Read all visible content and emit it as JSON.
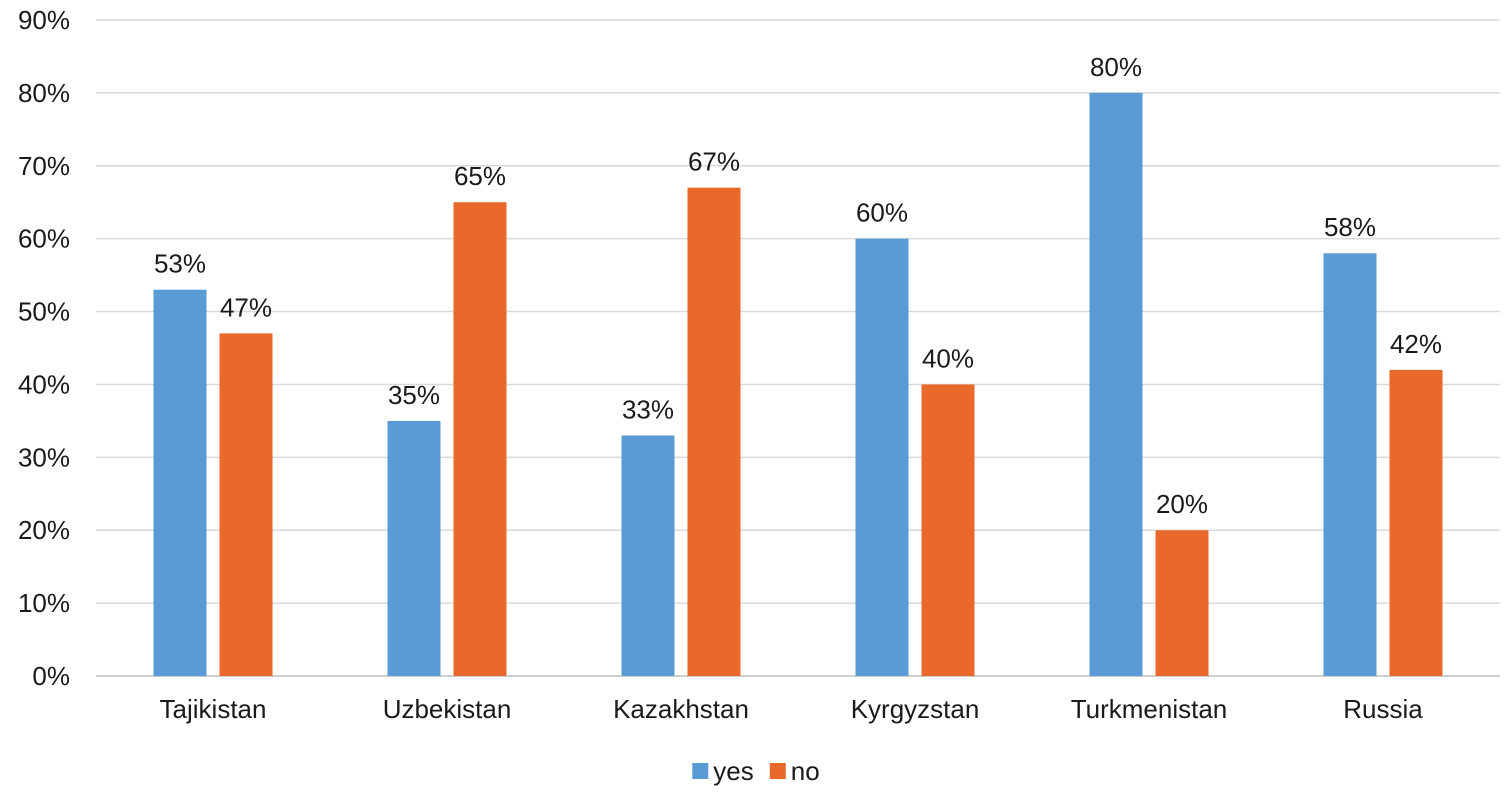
{
  "chart_data": {
    "type": "bar",
    "categories": [
      "Tajikistan",
      "Uzbekistan",
      "Kazakhstan",
      "Kyrgyzstan",
      "Turkmenistan",
      "Russia"
    ],
    "series": [
      {
        "name": "yes",
        "color": "#5b9bd5",
        "values": [
          53,
          35,
          33,
          60,
          80,
          58
        ],
        "labels": [
          "53%",
          "35%",
          "33%",
          "60%",
          "80%",
          "58%"
        ]
      },
      {
        "name": "no",
        "color": "#e8692a",
        "values": [
          47,
          65,
          67,
          40,
          20,
          42
        ],
        "labels": [
          "47%",
          "65%",
          "67%",
          "40%",
          "20%",
          "42%"
        ]
      }
    ],
    "ylim": [
      0,
      90
    ],
    "yticks": [
      0,
      10,
      20,
      30,
      40,
      50,
      60,
      70,
      80,
      90
    ],
    "ytick_labels": [
      "0%",
      "10%",
      "20%",
      "30%",
      "40%",
      "50%",
      "60%",
      "70%",
      "80%",
      "90%"
    ],
    "grid": true,
    "legend_position": "bottom",
    "title": "",
    "xlabel": "",
    "ylabel": ""
  }
}
